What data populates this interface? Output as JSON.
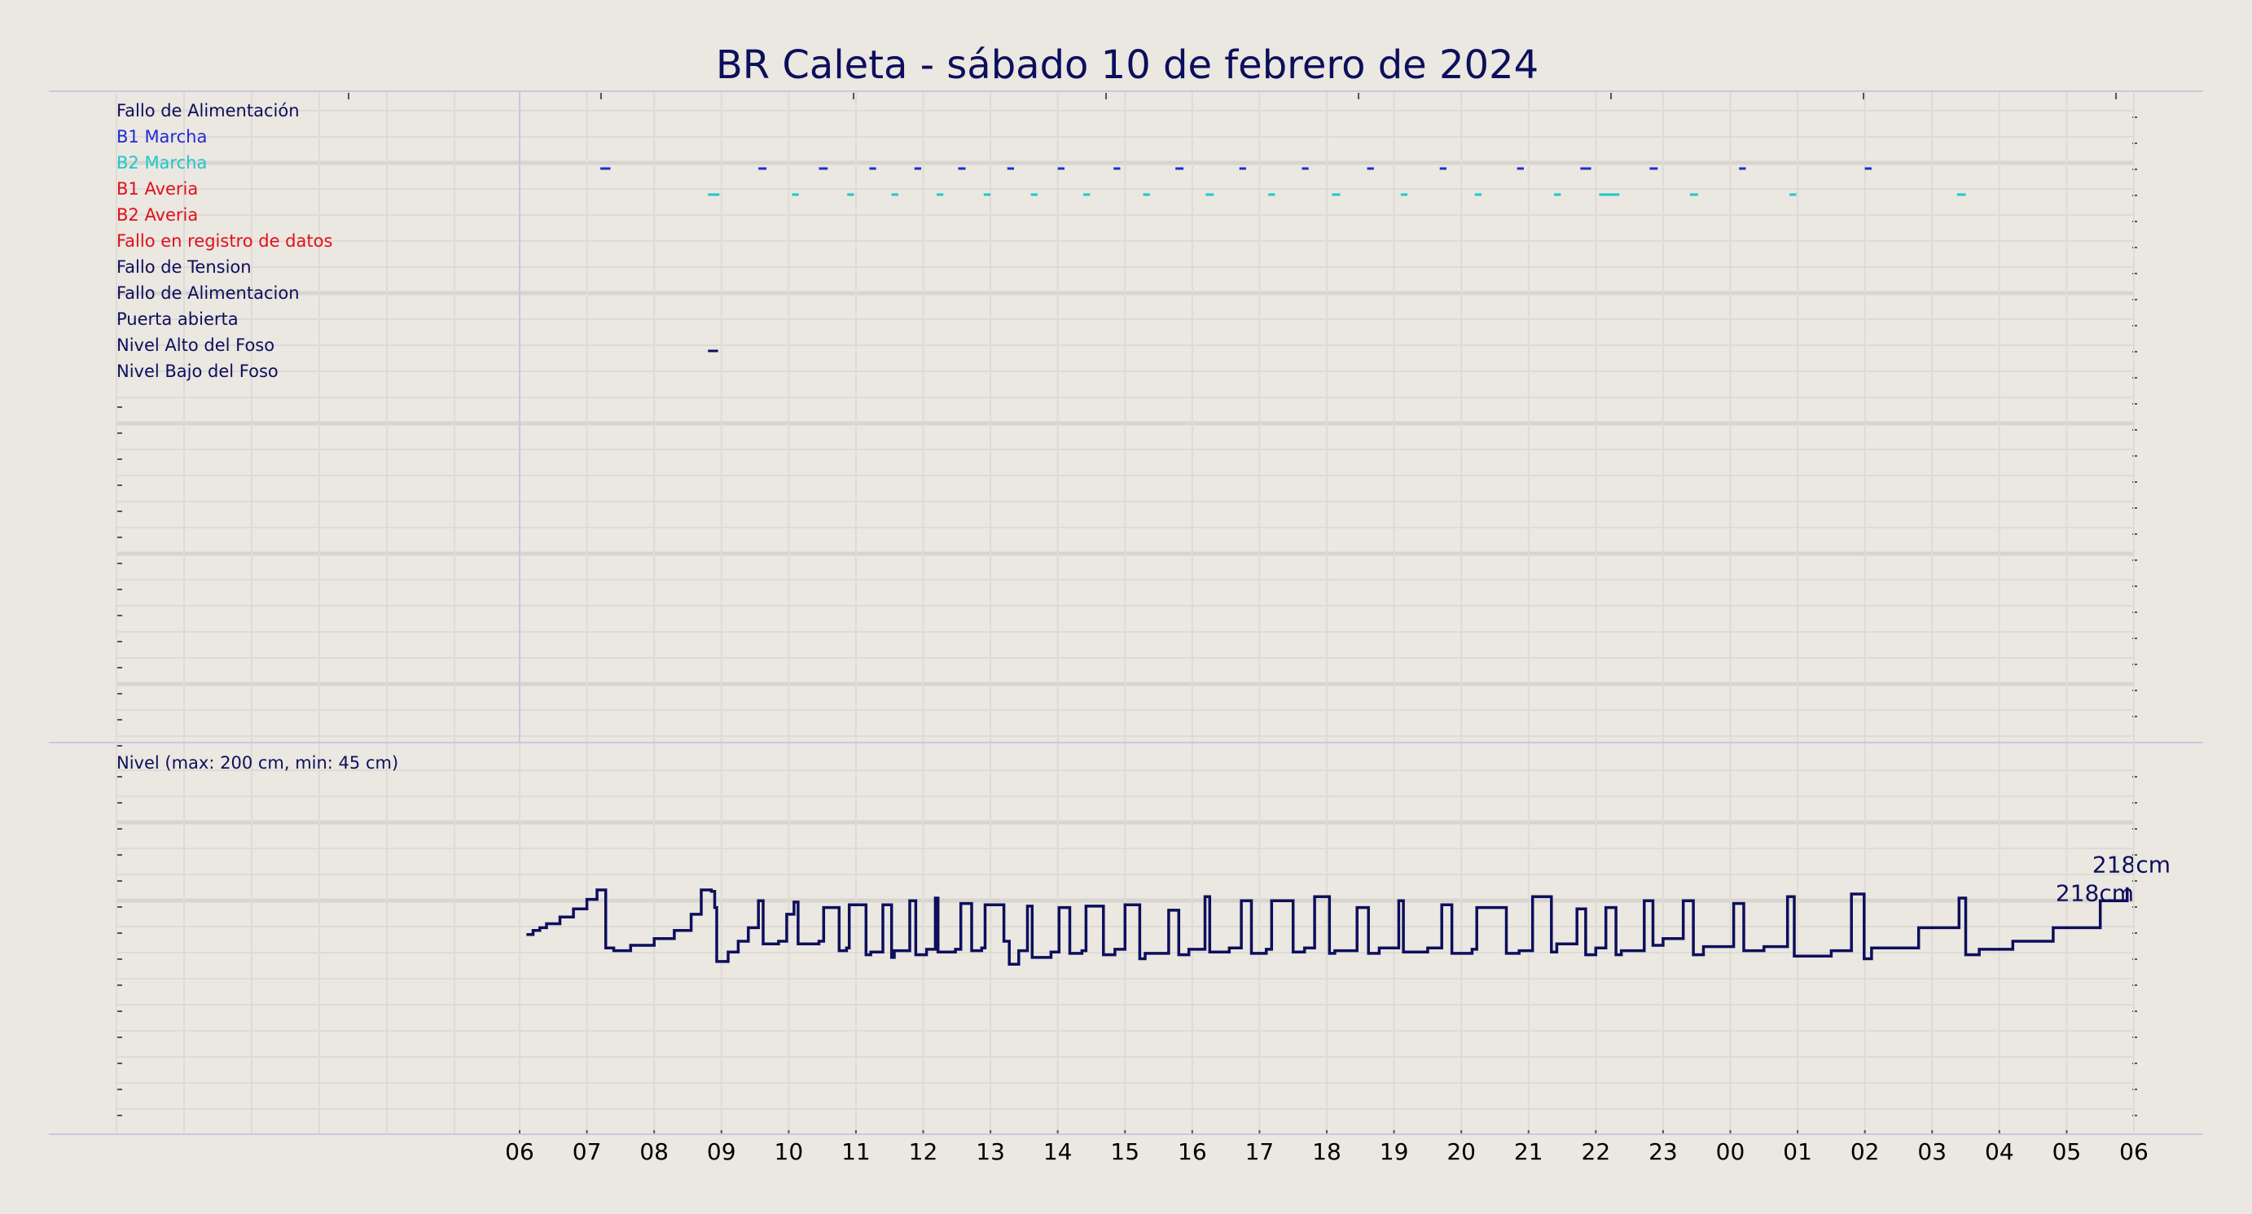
{
  "title": "BR Caleta   -   sábado 10 de febrero de 2024",
  "colors": {
    "background": "#ebe7e1",
    "grid": "#dedad6",
    "grid_strong": "#d8d4d0",
    "frame": "#c8c8e0",
    "navy": "#0c0f5c",
    "blue": "#1f2bd4",
    "cyan": "#1ec8c8",
    "red": "#e0101a"
  },
  "chart_data": [
    {
      "type": "event-timeline",
      "x_tick_labels": [
        "06",
        "07",
        "08",
        "09",
        "10",
        "11",
        "12",
        "13",
        "14",
        "15",
        "16",
        "17",
        "18",
        "19",
        "20",
        "21",
        "22",
        "23",
        "00",
        "01",
        "02",
        "03",
        "04",
        "05",
        "06"
      ],
      "x_range_hours": [
        6,
        30
      ],
      "grid": true,
      "signals": [
        {
          "label": "Fallo de Alimentación",
          "color": "#0c0f5c",
          "events": []
        },
        {
          "label": "B1 Marcha",
          "color": "#1f2bd4",
          "events": [
            [
              7.2,
              7.35
            ],
            [
              9.55,
              9.67
            ],
            [
              10.45,
              10.58
            ],
            [
              11.2,
              11.3
            ],
            [
              11.87,
              11.97
            ],
            [
              12.52,
              12.63
            ],
            [
              13.25,
              13.35
            ],
            [
              14.0,
              14.1
            ],
            [
              14.83,
              14.93
            ],
            [
              15.75,
              15.87
            ],
            [
              16.7,
              16.8
            ],
            [
              17.63,
              17.73
            ],
            [
              18.6,
              18.7
            ],
            [
              19.68,
              19.78
            ],
            [
              20.83,
              20.93
            ],
            [
              21.77,
              21.93
            ],
            [
              22.8,
              22.92
            ],
            [
              24.13,
              24.23
            ],
            [
              26.0,
              26.1
            ]
          ]
        },
        {
          "label": "B2 Marcha",
          "color": "#1ec8c8",
          "events": [
            [
              8.8,
              8.97
            ],
            [
              10.05,
              10.15
            ],
            [
              10.87,
              10.97
            ],
            [
              11.53,
              11.63
            ],
            [
              12.2,
              12.3
            ],
            [
              12.9,
              13.0
            ],
            [
              13.6,
              13.7
            ],
            [
              14.38,
              14.48
            ],
            [
              15.27,
              15.37
            ],
            [
              16.2,
              16.32
            ],
            [
              17.13,
              17.23
            ],
            [
              18.08,
              18.2
            ],
            [
              19.1,
              19.2
            ],
            [
              20.2,
              20.3
            ],
            [
              21.38,
              21.48
            ],
            [
              22.05,
              22.35
            ],
            [
              23.4,
              23.52
            ],
            [
              24.88,
              24.98
            ],
            [
              27.37,
              27.5
            ]
          ]
        },
        {
          "label": "B1 Averia",
          "color": "#e0101a",
          "events": []
        },
        {
          "label": "B2 Averia",
          "color": "#e0101a",
          "events": []
        },
        {
          "label": "Fallo en registro de datos",
          "color": "#e0101a",
          "events": []
        },
        {
          "label": "Fallo de Tension",
          "color": "#0c0f5c",
          "events": []
        },
        {
          "label": "Fallo de Alimentacion",
          "color": "#0c0f5c",
          "events": []
        },
        {
          "label": "Puerta abierta",
          "color": "#0c0f5c",
          "events": [
            [
              8.8,
              8.95
            ]
          ]
        },
        {
          "label": "Nivel Alto del Foso",
          "color": "#0c0f5c",
          "events": []
        },
        {
          "label": "Nivel Bajo del Foso",
          "color": "#0c0f5c",
          "events": []
        }
      ]
    },
    {
      "type": "line",
      "step": true,
      "title": "Nivel (max: 200 cm, min: 45 cm)",
      "y_unit": "cm",
      "ylim": [
        0,
        280
      ],
      "x_range_hours": [
        6,
        30
      ],
      "color": "#0c0f5c",
      "end_labels": [
        "218cm",
        "218cm"
      ],
      "x": [
        6.1,
        6.2,
        6.3,
        6.4,
        6.6,
        6.8,
        7.0,
        7.15,
        7.28,
        7.4,
        7.65,
        8.0,
        8.3,
        8.55,
        8.7,
        8.85,
        8.9,
        8.93,
        9.1,
        9.25,
        9.4,
        9.55,
        9.62,
        9.85,
        9.97,
        10.08,
        10.14,
        10.45,
        10.52,
        10.75,
        10.86,
        10.9,
        11.15,
        11.22,
        11.4,
        11.53,
        11.57,
        11.8,
        11.89,
        12.05,
        12.18,
        12.22,
        12.48,
        12.56,
        12.72,
        12.87,
        12.92,
        13.2,
        13.28,
        13.42,
        13.55,
        13.62,
        13.9,
        14.02,
        14.18,
        14.36,
        14.42,
        14.68,
        14.85,
        15.0,
        15.22,
        15.3,
        15.65,
        15.8,
        15.95,
        16.19,
        16.26,
        16.55,
        16.73,
        16.88,
        17.1,
        17.18,
        17.5,
        17.67,
        17.82,
        18.04,
        18.12,
        18.45,
        18.62,
        18.78,
        19.07,
        19.14,
        19.5,
        19.71,
        19.86,
        20.16,
        20.23,
        20.67,
        20.86,
        21.06,
        21.34,
        21.42,
        21.72,
        21.85,
        22.0,
        22.15,
        22.3,
        22.38,
        22.72,
        22.85,
        23.0,
        23.3,
        23.45,
        23.6,
        24.05,
        24.2,
        24.5,
        24.85,
        24.95,
        25.5,
        25.8,
        25.99,
        26.1,
        26.8,
        27.4,
        27.5,
        27.7,
        28.2,
        28.8,
        29.5,
        29.9
      ],
      "y": [
        145,
        148,
        150,
        153,
        158,
        164,
        171,
        178,
        135,
        133,
        137,
        142,
        148,
        160,
        178,
        177,
        165,
        125,
        132,
        140,
        150,
        170,
        138,
        140,
        160,
        169,
        138,
        140,
        165,
        133,
        135,
        167,
        130,
        132,
        167,
        128,
        133,
        170,
        130,
        134,
        172,
        132,
        134,
        168,
        133,
        135,
        167,
        140,
        123,
        133,
        166,
        128,
        132,
        165,
        131,
        133,
        166,
        130,
        134,
        167,
        127,
        131,
        163,
        130,
        134,
        173,
        132,
        135,
        170,
        131,
        134,
        170,
        132,
        135,
        173,
        131,
        133,
        165,
        131,
        135,
        170,
        132,
        135,
        167,
        131,
        134,
        165,
        131,
        133,
        173,
        132,
        138,
        164,
        130,
        135,
        165,
        130,
        133,
        170,
        137,
        142,
        170,
        130,
        136,
        168,
        133,
        136,
        173,
        129,
        133,
        175,
        127,
        135,
        150,
        172,
        130,
        134,
        140,
        150,
        170,
        180
      ]
    }
  ]
}
